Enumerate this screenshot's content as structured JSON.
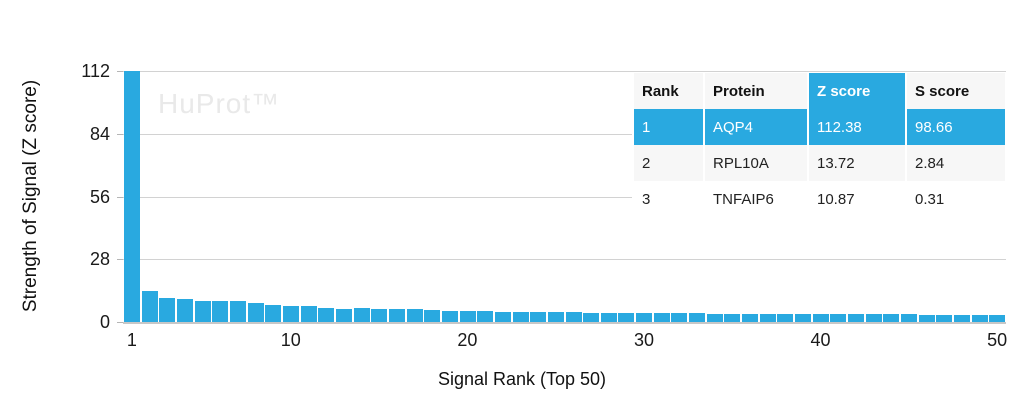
{
  "watermark": "HuProt™",
  "colors": {
    "bar": "#29A9E0",
    "highlight": "#29A9E0",
    "gridline": "#d2d2d2",
    "row_alt_bg": "#f7f7f7",
    "watermark": "#e9e9e9"
  },
  "chart_data": {
    "type": "bar",
    "title": "",
    "xlabel": "Signal Rank (Top 50)",
    "ylabel": "Strength of Signal (Z score)",
    "x": [
      1,
      2,
      3,
      4,
      5,
      6,
      7,
      8,
      9,
      10,
      11,
      12,
      13,
      14,
      15,
      16,
      17,
      18,
      19,
      20,
      21,
      22,
      23,
      24,
      25,
      26,
      27,
      28,
      29,
      30,
      31,
      32,
      33,
      34,
      35,
      36,
      37,
      38,
      39,
      40,
      41,
      42,
      43,
      44,
      45,
      46,
      47,
      48,
      49,
      50
    ],
    "values": [
      112.38,
      13.72,
      10.87,
      10.34,
      9.52,
      9.31,
      9.45,
      8.62,
      7.71,
      7.34,
      7.21,
      6.24,
      6.02,
      6.11,
      5.83,
      5.68,
      5.91,
      5.32,
      5.14,
      5.02,
      4.84,
      4.71,
      4.63,
      4.52,
      4.44,
      4.35,
      4.27,
      4.21,
      4.13,
      4.05,
      3.98,
      3.93,
      3.88,
      3.82,
      3.78,
      3.73,
      3.69,
      3.64,
      3.61,
      3.57,
      3.53,
      3.49,
      3.46,
      3.42,
      3.39,
      3.35,
      3.31,
      3.26,
      3.21,
      3.15
    ],
    "yticks": [
      0,
      28,
      56,
      84,
      112
    ],
    "xticks": [
      1,
      10,
      20,
      30,
      40,
      50
    ],
    "ylim": [
      0,
      112.38
    ],
    "grid": true,
    "legend": null
  },
  "table": {
    "headers": [
      "Rank",
      "Protein",
      "Z score",
      "S score"
    ],
    "highlight_col": 2,
    "highlight_row": 0,
    "rows": [
      [
        "1",
        "AQP4",
        "112.38",
        "98.66"
      ],
      [
        "2",
        "RPL10A",
        "13.72",
        "2.84"
      ],
      [
        "3",
        "TNFAIP6",
        "10.87",
        "0.31"
      ]
    ]
  }
}
